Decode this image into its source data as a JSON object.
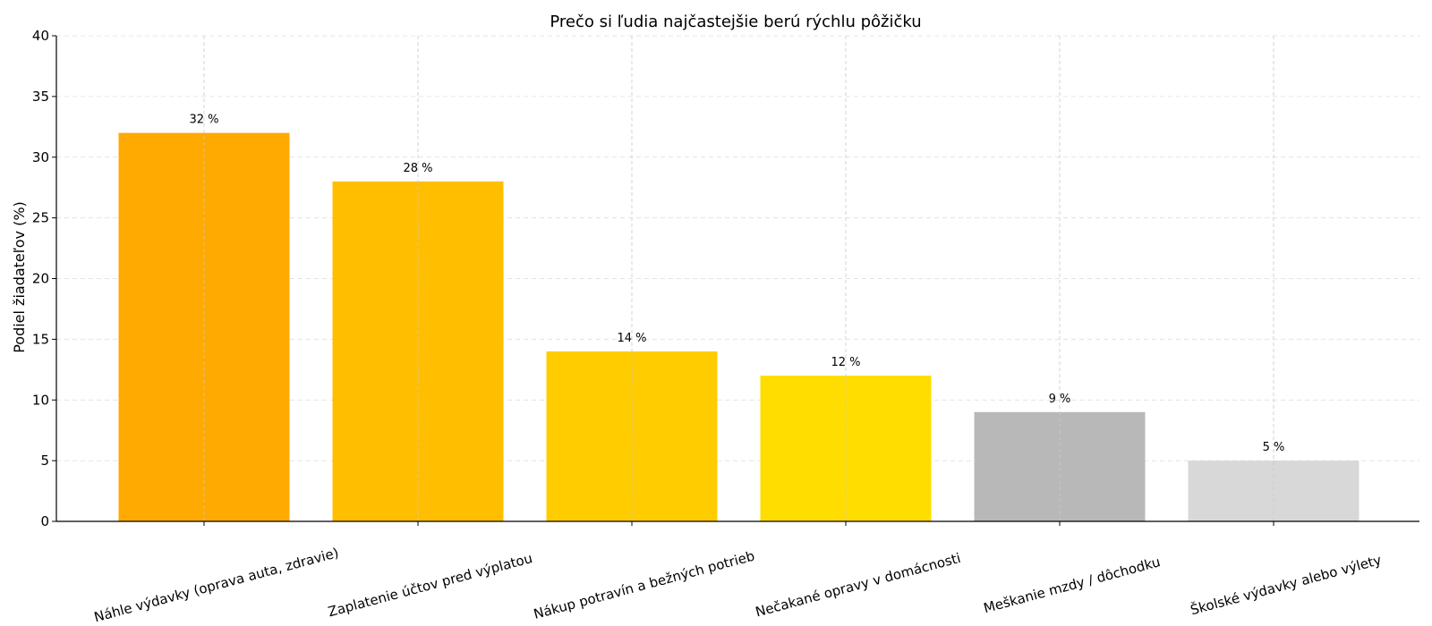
{
  "chart_data": {
    "type": "bar",
    "title": "Prečo si ľudia najčastejšie berú rýchlu pôžičku",
    "ylabel": "Podiel žiadateľov (%)",
    "xlabel": "",
    "categories": [
      "Náhle výdavky (oprava auta, zdravie)",
      "Zaplatenie účtov pred výplatou",
      "Nákup potravín a bežných potrieb",
      "Nečakané opravy v domácnosti",
      "Meškanie mzdy / dôchodku",
      "Školské výdavky alebo výlety"
    ],
    "values": [
      32,
      28,
      14,
      12,
      9,
      5
    ],
    "value_labels": [
      "32 %",
      "28 %",
      "14 %",
      "12 %",
      "9 %",
      "5 %"
    ],
    "colors": [
      "#FFAA00",
      "#FFBF00",
      "#FFCC00",
      "#FFDD00",
      "#B8B8B8",
      "#D8D8D8"
    ],
    "ylim": [
      0,
      40
    ],
    "yticks": [
      0,
      5,
      10,
      15,
      20,
      25,
      30,
      35,
      40
    ],
    "grid": true
  }
}
